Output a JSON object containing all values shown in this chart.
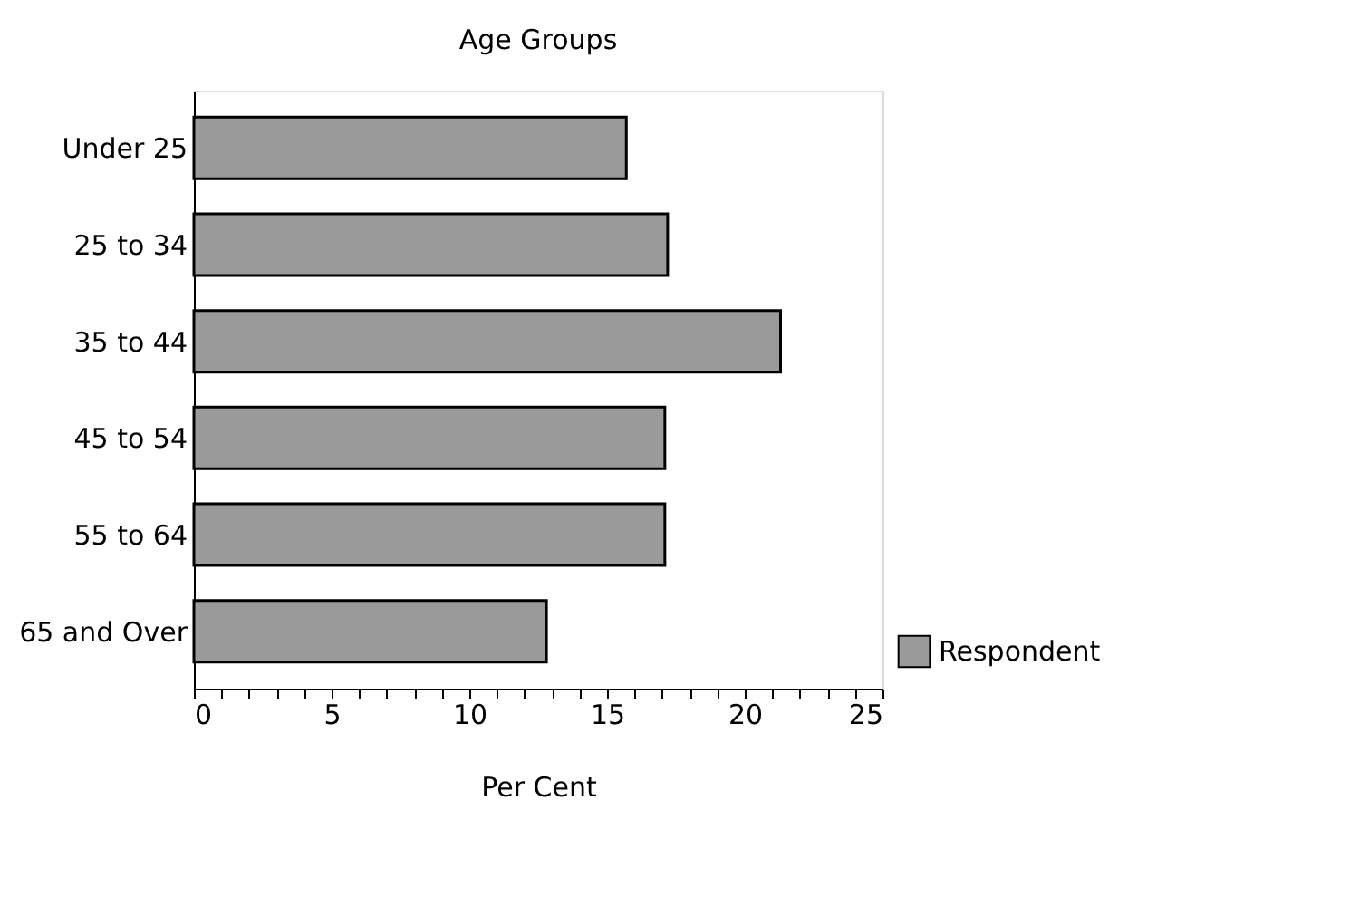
{
  "chart_data": {
    "type": "bar",
    "orientation": "horizontal",
    "title": "Age Groups",
    "xlabel": "Per Cent",
    "categories": [
      "Under 25",
      "25 to 34",
      "35 to 44",
      "45 to 54",
      "55 to 64",
      "65 and Over"
    ],
    "series": [
      {
        "name": "Respondent",
        "color": "#9a9a9a",
        "values": [
          15.7,
          17.2,
          21.3,
          17.1,
          17.1,
          12.8
        ]
      }
    ],
    "xlim": [
      0,
      25
    ],
    "xticks": [
      0,
      {
        "value": 1,
        "label": null
      },
      {
        "value": 2,
        "label": null
      },
      {
        "value": 3,
        "label": null
      },
      {
        "value": 4,
        "label": null
      },
      5,
      {
        "value": 6,
        "label": null
      },
      {
        "value": 7,
        "label": null
      },
      {
        "value": 8,
        "label": null
      },
      {
        "value": 9,
        "label": null
      },
      10,
      {
        "value": 11,
        "label": null
      },
      {
        "value": 12,
        "label": null
      },
      {
        "value": 13,
        "label": null
      },
      {
        "value": 14,
        "label": null
      },
      15,
      {
        "value": 16,
        "label": null
      },
      {
        "value": 17,
        "label": null
      },
      {
        "value": 18,
        "label": null
      },
      {
        "value": 19,
        "label": null
      },
      20,
      {
        "value": 21,
        "label": null
      },
      {
        "value": 22,
        "label": null
      },
      {
        "value": 23,
        "label": null
      },
      {
        "value": 24,
        "label": null
      },
      25
    ],
    "grid": false,
    "legend": "bottom right"
  }
}
